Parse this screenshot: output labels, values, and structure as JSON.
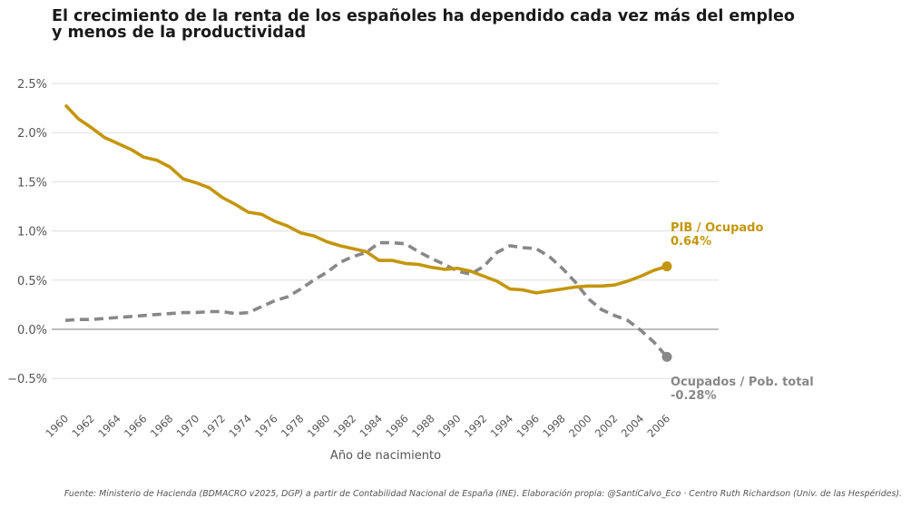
{
  "chart_data": {
    "type": "line",
    "title": "El crecimiento de la renta de los españoles ha dependido cada vez más del empleo y menos de la productividad",
    "title_lines": [
      "El crecimiento de la renta de los españoles ha dependido cada vez más del empleo",
      "y menos de la productividad"
    ],
    "xlabel": "Año de nacimiento",
    "ylabel": "",
    "xlim": [
      1960,
      2006
    ],
    "ylim": [
      -0.8,
      2.7
    ],
    "grid": "horizontal",
    "y_ticks": [
      -0.5,
      0.0,
      0.5,
      1.0,
      1.5,
      2.0,
      2.5
    ],
    "y_tick_labels": [
      "−0.5%",
      "0.0%",
      "0.5%",
      "1.0%",
      "1.5%",
      "2.0%",
      "2.5%"
    ],
    "x_ticks": [
      1960,
      1962,
      1964,
      1966,
      1968,
      1970,
      1972,
      1974,
      1976,
      1978,
      1980,
      1982,
      1984,
      1986,
      1988,
      1990,
      1992,
      1994,
      1996,
      1998,
      2000,
      2002,
      2004,
      2006
    ],
    "x_tick_labels": [
      "1960",
      "1962",
      "1964",
      "1966",
      "1968",
      "1970",
      "1972",
      "1974",
      "1976",
      "1978",
      "1980",
      "1982",
      "1984",
      "1986",
      "1988",
      "1990",
      "1992",
      "1994",
      "1996",
      "1998",
      "2000",
      "2002",
      "2004",
      "2006"
    ],
    "x": [
      1960,
      1961,
      1962,
      1963,
      1964,
      1965,
      1966,
      1967,
      1968,
      1969,
      1970,
      1971,
      1972,
      1973,
      1974,
      1975,
      1976,
      1977,
      1978,
      1979,
      1980,
      1981,
      1982,
      1983,
      1984,
      1985,
      1986,
      1987,
      1988,
      1989,
      1990,
      1991,
      1992,
      1993,
      1994,
      1995,
      1996,
      1997,
      1998,
      1999,
      2000,
      2001,
      2002,
      2003,
      2004,
      2005,
      2006
    ],
    "series": [
      {
        "name": "PIB / Ocupado",
        "color": "#C4960C",
        "style": "solid",
        "end_label": "PIB / Ocupado",
        "end_value_label": "0.64%",
        "values": [
          2.28,
          2.14,
          2.05,
          1.95,
          1.89,
          1.83,
          1.75,
          1.72,
          1.65,
          1.53,
          1.49,
          1.44,
          1.34,
          1.27,
          1.19,
          1.17,
          1.1,
          1.05,
          0.98,
          0.95,
          0.89,
          0.85,
          0.82,
          0.79,
          0.7,
          0.7,
          0.67,
          0.66,
          0.63,
          0.61,
          0.62,
          0.59,
          0.54,
          0.49,
          0.41,
          0.4,
          0.37,
          0.39,
          0.41,
          0.43,
          0.44,
          0.44,
          0.45,
          0.49,
          0.54,
          0.6,
          0.64
        ]
      },
      {
        "name": "Ocupados / Pob. total",
        "color": "#888888",
        "style": "dashed",
        "end_label": "Ocupados / Pob. total",
        "end_value_label": "-0.28%",
        "values": [
          0.09,
          0.1,
          0.1,
          0.11,
          0.12,
          0.13,
          0.14,
          0.15,
          0.16,
          0.17,
          0.17,
          0.18,
          0.18,
          0.16,
          0.17,
          0.23,
          0.29,
          0.33,
          0.41,
          0.5,
          0.58,
          0.68,
          0.74,
          0.78,
          0.88,
          0.88,
          0.87,
          0.79,
          0.72,
          0.66,
          0.59,
          0.56,
          0.64,
          0.78,
          0.85,
          0.83,
          0.82,
          0.74,
          0.62,
          0.48,
          0.31,
          0.2,
          0.14,
          0.09,
          -0.01,
          -0.13,
          -0.28
        ]
      }
    ],
    "source": "Fuente: Ministerio de Hacienda (BDMACRO v2025, DGP) a partir de Contabilidad Nacional de España (INE). Elaboración propia: @SantiCalvo_Eco · Centro Ruth Richardson (Univ. de las Hespérides)."
  }
}
